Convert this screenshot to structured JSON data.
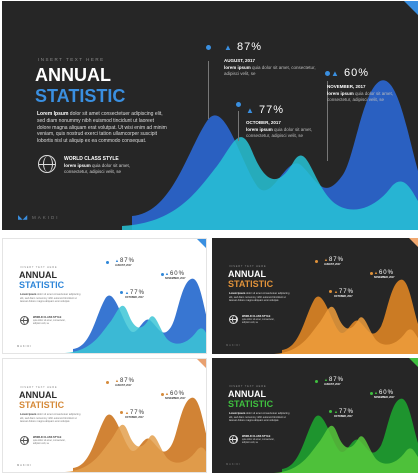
{
  "slide": {
    "tag": "INSERT TEXT HERE",
    "title_line1": "ANNUAL",
    "title_line2": "STATISTIC",
    "body_bold": "Lorem Ipsum",
    "body_text": "dolor sit amet consectetuer adipiscing elit, sed diam nonummy nibh euismod tincidunt ut laoreet dolore magna aliquam erat volutpat. Ut wisi enim ad minim veniam, quis nostrud exerci tation ullamcorper suscipit lobortis nisl ut aliquip ex ea commodo consequat.",
    "feature_title": "WORLD CLASS STYLE",
    "feature_bold": "lorem ipsum",
    "feature_text": "quia dolor sit amet, consectetur, adipisci velit, se",
    "stats": [
      {
        "percent": "87%",
        "date": "AUGUST, 2017",
        "bold": "lorem ipsum",
        "text": "quia dolor sit amet, consectetur, adipisci velit, se"
      },
      {
        "percent": "60%",
        "date": "NOVEMBER, 2017",
        "bold": "lorem ipsum",
        "text": "quia dolor sit amet, consectetur, adipisci velit, se"
      },
      {
        "percent": "77%",
        "date": "OCTOBER, 2017",
        "bold": "lorem ipsum",
        "text": "quia dolor sit amet, consectetur, adipisci velit, se"
      }
    ],
    "footer": "MAKIDI",
    "thumb_footer": "MAKIDI",
    "thumb_body": "dolor sit amet consectetuer adipiscing elit, sed diam nonummy nibh euismod tincidunt ut laoreet dolore magna aliquam erat volutpat."
  },
  "variants": [
    {
      "name": "main",
      "theme": "dark",
      "accent": "#3a8fe0",
      "wave_back": "#2a63c9",
      "wave_front": "#27c3d6",
      "corner": "#3a8fe0"
    },
    {
      "name": "white-blue",
      "theme": "light",
      "accent": "#2f86d8",
      "wave_back": "#2d6fd0",
      "wave_front": "#3cc6d6",
      "corner": "#3a8fe0"
    },
    {
      "name": "dark-orange",
      "theme": "dark",
      "accent": "#e0923a",
      "wave_back": "#d47f24",
      "wave_front": "#ef9d3c",
      "corner": "#f0a870"
    },
    {
      "name": "white-orange",
      "theme": "light",
      "accent": "#d58a3a",
      "wave_back": "#cf7c2a",
      "wave_front": "#e3a04d",
      "corner": "#e8a070"
    },
    {
      "name": "dark-green",
      "theme": "dark",
      "accent": "#3fbf3f",
      "wave_back": "#1e9a2e",
      "wave_front": "#57c93c",
      "corner": "#3fbf3f"
    }
  ]
}
